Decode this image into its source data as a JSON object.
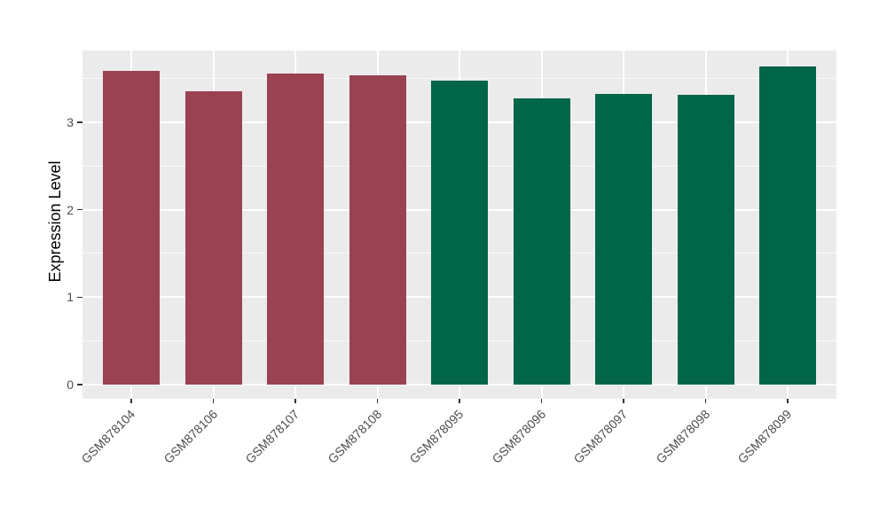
{
  "figure": {
    "background": "#FFFFFF",
    "panel_background": "#EBEBEB",
    "gridline_color": "#FFFFFF",
    "tick_color": "#333333",
    "axis_text_color": "#4D4D4D",
    "axis_title_color": "#000000"
  },
  "chart_data": {
    "type": "bar",
    "title": "",
    "xlabel": "",
    "ylabel": "Expression Level",
    "categories": [
      "GSM878104",
      "GSM878106",
      "GSM878107",
      "GSM878108",
      "GSM878095",
      "GSM878096",
      "GSM878097",
      "GSM878098",
      "GSM878099"
    ],
    "values": [
      3.59,
      3.35,
      3.56,
      3.54,
      3.48,
      3.27,
      3.32,
      3.31,
      3.64
    ],
    "bar_colors": [
      "#9A4152",
      "#9A4152",
      "#9A4152",
      "#9A4152",
      "#006647",
      "#006647",
      "#006647",
      "#006647",
      "#006647"
    ],
    "group_color_legend": {
      "red_group": "#9A4152",
      "green_group": "#006647"
    },
    "yticks": [
      0,
      1,
      2,
      3
    ],
    "ytick_labels": [
      "0",
      "1",
      "2",
      "3"
    ],
    "minor_yticks": [
      0.5,
      1.5,
      2.5,
      3.5
    ],
    "ylim": [
      -0.16,
      3.82
    ],
    "grid": "white major and minor horizontal lines, white vertical lines at each bar center, on grey panel",
    "legend_position": "none",
    "bar_orientation": "vertical",
    "x_label_rotation_deg": 45
  }
}
